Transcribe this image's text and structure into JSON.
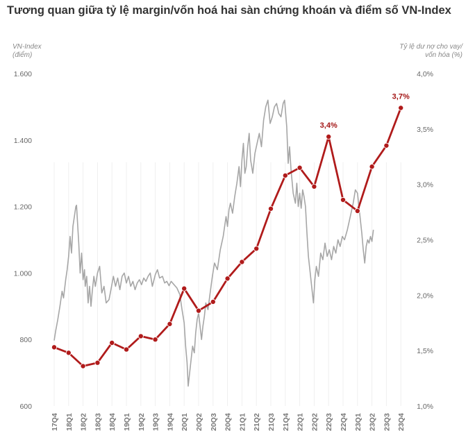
{
  "chart_data": {
    "type": "line",
    "title": "Tương quan giữa tỷ lệ margin/vốn hoá hai sàn chứng khoán và điểm số VN-Index",
    "y_left_label": [
      "VN-Index",
      "(điểm)"
    ],
    "y_right_label": [
      "Tỷ lệ dư nợ cho vay/",
      "vốn hóa (%)"
    ],
    "y_left_lim": [
      600,
      1600
    ],
    "y_left_ticks": [
      "600",
      "800",
      "1.000",
      "1.200",
      "1.400",
      "1.600"
    ],
    "y_right_lim": [
      1.0,
      4.0
    ],
    "y_right_ticks": [
      "1,0%",
      "1,5%",
      "2,0%",
      "2,5%",
      "3,0%",
      "3,5%",
      "4,0%"
    ],
    "categories": [
      "17Q4",
      "18Q1",
      "18Q2",
      "18Q3",
      "18Q4",
      "19Q1",
      "19Q2",
      "19Q3",
      "19Q4",
      "20Q1",
      "20Q2",
      "20Q3",
      "20Q4",
      "21Q1",
      "21Q2",
      "21Q3",
      "21Q4",
      "22Q1",
      "22Q2",
      "22Q3",
      "22Q4",
      "23Q1",
      "23Q2",
      "23Q3",
      "23Q4"
    ],
    "series": [
      {
        "name": "VN-Index",
        "axis": "left",
        "color": "#a6a6a6",
        "points": [
          [
            0.0,
            797
          ],
          [
            0.1,
            825
          ],
          [
            0.25,
            860
          ],
          [
            0.4,
            900
          ],
          [
            0.55,
            945
          ],
          [
            0.65,
            925
          ],
          [
            0.8,
            980
          ],
          [
            0.9,
            1010
          ],
          [
            1.0,
            1050
          ],
          [
            1.1,
            1110
          ],
          [
            1.2,
            1060
          ],
          [
            1.3,
            1140
          ],
          [
            1.4,
            1170
          ],
          [
            1.5,
            1200
          ],
          [
            1.55,
            1204
          ],
          [
            1.62,
            1150
          ],
          [
            1.7,
            1090
          ],
          [
            1.8,
            1000
          ],
          [
            1.9,
            1060
          ],
          [
            2.0,
            980
          ],
          [
            2.1,
            1010
          ],
          [
            2.15,
            960
          ],
          [
            2.25,
            990
          ],
          [
            2.35,
            910
          ],
          [
            2.45,
            960
          ],
          [
            2.55,
            900
          ],
          [
            2.65,
            950
          ],
          [
            2.75,
            990
          ],
          [
            2.85,
            960
          ],
          [
            3.0,
            1000
          ],
          [
            3.15,
            1020
          ],
          [
            3.3,
            940
          ],
          [
            3.45,
            960
          ],
          [
            3.6,
            910
          ],
          [
            3.8,
            920
          ],
          [
            3.95,
            955
          ],
          [
            4.1,
            990
          ],
          [
            4.25,
            960
          ],
          [
            4.4,
            985
          ],
          [
            4.55,
            950
          ],
          [
            4.7,
            990
          ],
          [
            4.85,
            1000
          ],
          [
            5.0,
            970
          ],
          [
            5.15,
            990
          ],
          [
            5.3,
            960
          ],
          [
            5.45,
            975
          ],
          [
            5.6,
            950
          ],
          [
            5.75,
            970
          ],
          [
            5.9,
            980
          ],
          [
            6.05,
            965
          ],
          [
            6.2,
            985
          ],
          [
            6.35,
            975
          ],
          [
            6.5,
            990
          ],
          [
            6.65,
            1000
          ],
          [
            6.8,
            960
          ],
          [
            7.0,
            995
          ],
          [
            7.15,
            1010
          ],
          [
            7.3,
            985
          ],
          [
            7.5,
            990
          ],
          [
            7.65,
            970
          ],
          [
            7.8,
            975
          ],
          [
            7.95,
            962
          ],
          [
            8.1,
            975
          ],
          [
            8.3,
            965
          ],
          [
            8.5,
            955
          ],
          [
            8.7,
            935
          ],
          [
            8.85,
            890
          ],
          [
            9.0,
            850
          ],
          [
            9.1,
            780
          ],
          [
            9.2,
            730
          ],
          [
            9.28,
            660
          ],
          [
            9.38,
            700
          ],
          [
            9.48,
            740
          ],
          [
            9.58,
            780
          ],
          [
            9.7,
            760
          ],
          [
            9.8,
            820
          ],
          [
            9.9,
            860
          ],
          [
            10.0,
            880
          ],
          [
            10.1,
            840
          ],
          [
            10.2,
            800
          ],
          [
            10.3,
            840
          ],
          [
            10.4,
            870
          ],
          [
            10.5,
            910
          ],
          [
            10.65,
            890
          ],
          [
            10.8,
            940
          ],
          [
            10.95,
            990
          ],
          [
            11.1,
            1030
          ],
          [
            11.3,
            1010
          ],
          [
            11.5,
            1070
          ],
          [
            11.7,
            1110
          ],
          [
            11.9,
            1170
          ],
          [
            12.0,
            1140
          ],
          [
            12.1,
            1190
          ],
          [
            12.2,
            1210
          ],
          [
            12.35,
            1180
          ],
          [
            12.5,
            1230
          ],
          [
            12.65,
            1270
          ],
          [
            12.8,
            1320
          ],
          [
            12.9,
            1260
          ],
          [
            13.0,
            1340
          ],
          [
            13.1,
            1390
          ],
          [
            13.2,
            1300
          ],
          [
            13.3,
            1320
          ],
          [
            13.4,
            1380
          ],
          [
            13.5,
            1420
          ],
          [
            13.6,
            1340
          ],
          [
            13.75,
            1300
          ],
          [
            13.9,
            1360
          ],
          [
            14.05,
            1390
          ],
          [
            14.2,
            1420
          ],
          [
            14.35,
            1380
          ],
          [
            14.5,
            1460
          ],
          [
            14.65,
            1500
          ],
          [
            14.8,
            1520
          ],
          [
            14.95,
            1450
          ],
          [
            15.1,
            1470
          ],
          [
            15.25,
            1500
          ],
          [
            15.4,
            1510
          ],
          [
            15.55,
            1480
          ],
          [
            15.7,
            1470
          ],
          [
            15.85,
            1510
          ],
          [
            15.95,
            1520
          ],
          [
            16.1,
            1440
          ],
          [
            16.2,
            1330
          ],
          [
            16.3,
            1380
          ],
          [
            16.4,
            1310
          ],
          [
            16.55,
            1240
          ],
          [
            16.7,
            1210
          ],
          [
            16.8,
            1270
          ],
          [
            16.9,
            1200
          ],
          [
            17.0,
            1240
          ],
          [
            17.1,
            1195
          ],
          [
            17.2,
            1250
          ],
          [
            17.3,
            1230
          ],
          [
            17.4,
            1200
          ],
          [
            17.5,
            1120
          ],
          [
            17.6,
            1050
          ],
          [
            17.7,
            1010
          ],
          [
            17.85,
            950
          ],
          [
            17.95,
            910
          ],
          [
            18.05,
            980
          ],
          [
            18.15,
            1020
          ],
          [
            18.3,
            990
          ],
          [
            18.45,
            1060
          ],
          [
            18.6,
            1040
          ],
          [
            18.75,
            1090
          ],
          [
            18.9,
            1050
          ],
          [
            19.05,
            1070
          ],
          [
            19.2,
            1040
          ],
          [
            19.35,
            1080
          ],
          [
            19.5,
            1060
          ],
          [
            19.65,
            1100
          ],
          [
            19.8,
            1080
          ],
          [
            19.95,
            1110
          ],
          [
            20.1,
            1100
          ],
          [
            20.3,
            1130
          ],
          [
            20.5,
            1170
          ],
          [
            20.7,
            1210
          ],
          [
            20.85,
            1250
          ],
          [
            21.0,
            1240
          ],
          [
            21.15,
            1180
          ],
          [
            21.3,
            1120
          ],
          [
            21.4,
            1070
          ],
          [
            21.5,
            1030
          ],
          [
            21.6,
            1080
          ],
          [
            21.7,
            1100
          ],
          [
            21.8,
            1090
          ],
          [
            21.9,
            1110
          ],
          [
            22.0,
            1095
          ],
          [
            22.1,
            1130
          ]
        ]
      },
      {
        "name": "Tỷ lệ dư nợ cho vay/vốn hóa",
        "axis": "right",
        "color": "#b01b1b",
        "values": [
          1.53,
          1.48,
          1.36,
          1.39,
          1.57,
          1.51,
          1.63,
          1.6,
          1.74,
          2.06,
          1.86,
          1.94,
          2.15,
          2.3,
          2.42,
          2.78,
          3.08,
          3.15,
          2.98,
          3.43,
          2.86,
          2.76,
          3.16,
          3.35,
          3.69
        ]
      }
    ],
    "annotations": [
      {
        "category": "22Q3",
        "text": "3,4%"
      },
      {
        "category": "23Q4",
        "text": "3,7%"
      }
    ]
  }
}
